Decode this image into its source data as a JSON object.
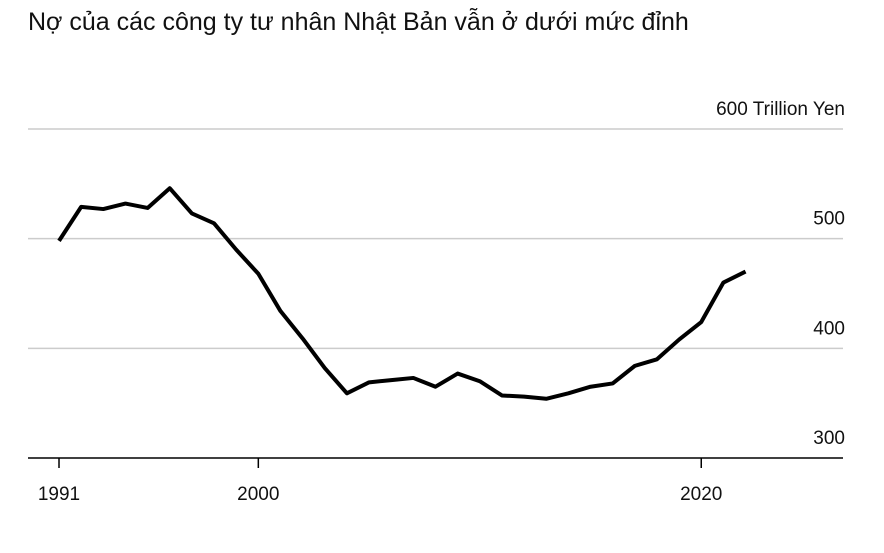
{
  "chart_data": {
    "type": "line",
    "title": "Nợ của các công ty tư nhân Nhật Bản vẫn ở dưới mức đỉnh",
    "x": [
      1991,
      1992,
      1993,
      1994,
      1995,
      1996,
      1997,
      1998,
      1999,
      2000,
      2001,
      2002,
      2003,
      2004,
      2005,
      2006,
      2007,
      2008,
      2009,
      2010,
      2011,
      2012,
      2013,
      2014,
      2015,
      2016,
      2017,
      2018,
      2019,
      2020,
      2021,
      2022
    ],
    "series": [
      {
        "color": "#000000",
        "values": [
          498,
          529,
          527,
          532,
          528,
          546,
          523,
          514,
          490,
          468,
          434,
          409,
          382,
          359,
          369,
          371,
          373,
          365,
          377,
          370,
          357,
          356,
          354,
          359,
          365,
          368,
          384,
          390,
          408,
          424,
          460,
          470
        ]
      }
    ],
    "xlim": [
      1989.6,
      2026.4
    ],
    "xticks": [
      1991,
      2000,
      2020
    ],
    "ylim": [
      300,
      600
    ],
    "yticks": [
      300,
      400,
      500,
      {
        "value": 600,
        "label": "600 Trillion Yen"
      }
    ],
    "grid": true
  }
}
